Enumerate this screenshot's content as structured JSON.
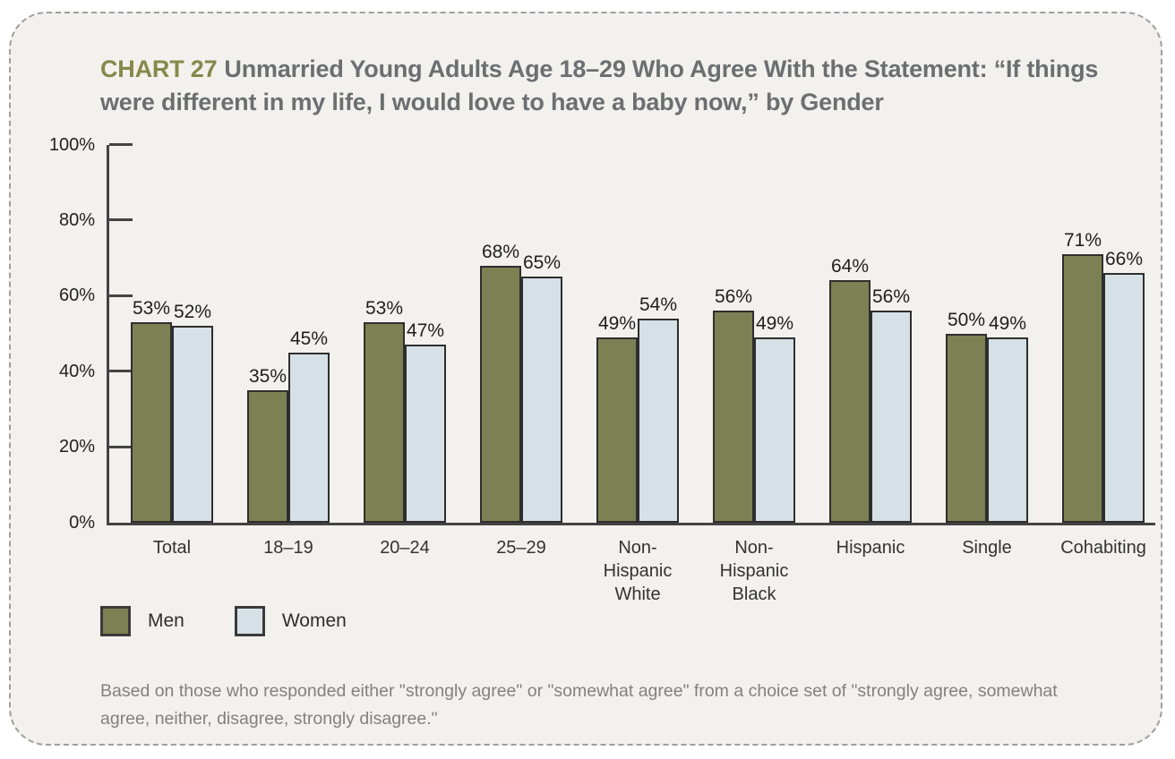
{
  "card": {
    "title_label": "CHART 27",
    "title_text": "Unmarried Young Adults Age 18–29 Who Agree With the Statement: “If things were different in my life, I would love to have a baby now,” by Gender",
    "footnote": "Based on those who responded either \"strongly agree\" or \"somewhat agree\" from a choice set of \"strongly agree, somewhat agree, neither, disagree, strongly disagree.\""
  },
  "legend": [
    {
      "label": "Men",
      "color": "#7b8153"
    },
    {
      "label": "Women",
      "color": "#d6e1e7"
    }
  ],
  "chart_data": {
    "type": "bar",
    "title": "Unmarried Young Adults Age 18–29 Who Agree With the Statement: “If things were different in my life, I would love to have a baby now,” by Gender",
    "categories": [
      "Total",
      "18–19",
      "20–24",
      "25–29",
      "Non-Hispanic White",
      "Non-Hispanic Black",
      "Hispanic",
      "Single",
      "Cohabiting"
    ],
    "tick_labels": [
      "Total",
      "18–19",
      "20–24",
      "25–29",
      "Non-\nHispanic\nWhite",
      "Non-\nHispanic\nBlack",
      "Hispanic",
      "Single",
      "Cohabiting"
    ],
    "series": [
      {
        "name": "Men",
        "color": "#7b8153",
        "values": [
          53,
          35,
          53,
          68,
          49,
          56,
          64,
          50,
          71
        ]
      },
      {
        "name": "Women",
        "color": "#d6e1e7",
        "values": [
          52,
          45,
          47,
          65,
          54,
          49,
          56,
          49,
          66
        ]
      }
    ],
    "value_suffix": "%",
    "xlabel": "",
    "ylabel": "",
    "ylim": [
      0,
      100
    ],
    "yticks": [
      0,
      20,
      40,
      60,
      80,
      100
    ],
    "ytick_suffix": "%",
    "grid": false,
    "legend_position": "bottom-left",
    "colors": {
      "axis": "#434343",
      "bar_border": "#2e2e2e",
      "card_background": "#f3f1ed",
      "title_label": "#85894a",
      "title_text": "#6b6f71",
      "footnote_text": "#818181"
    }
  }
}
